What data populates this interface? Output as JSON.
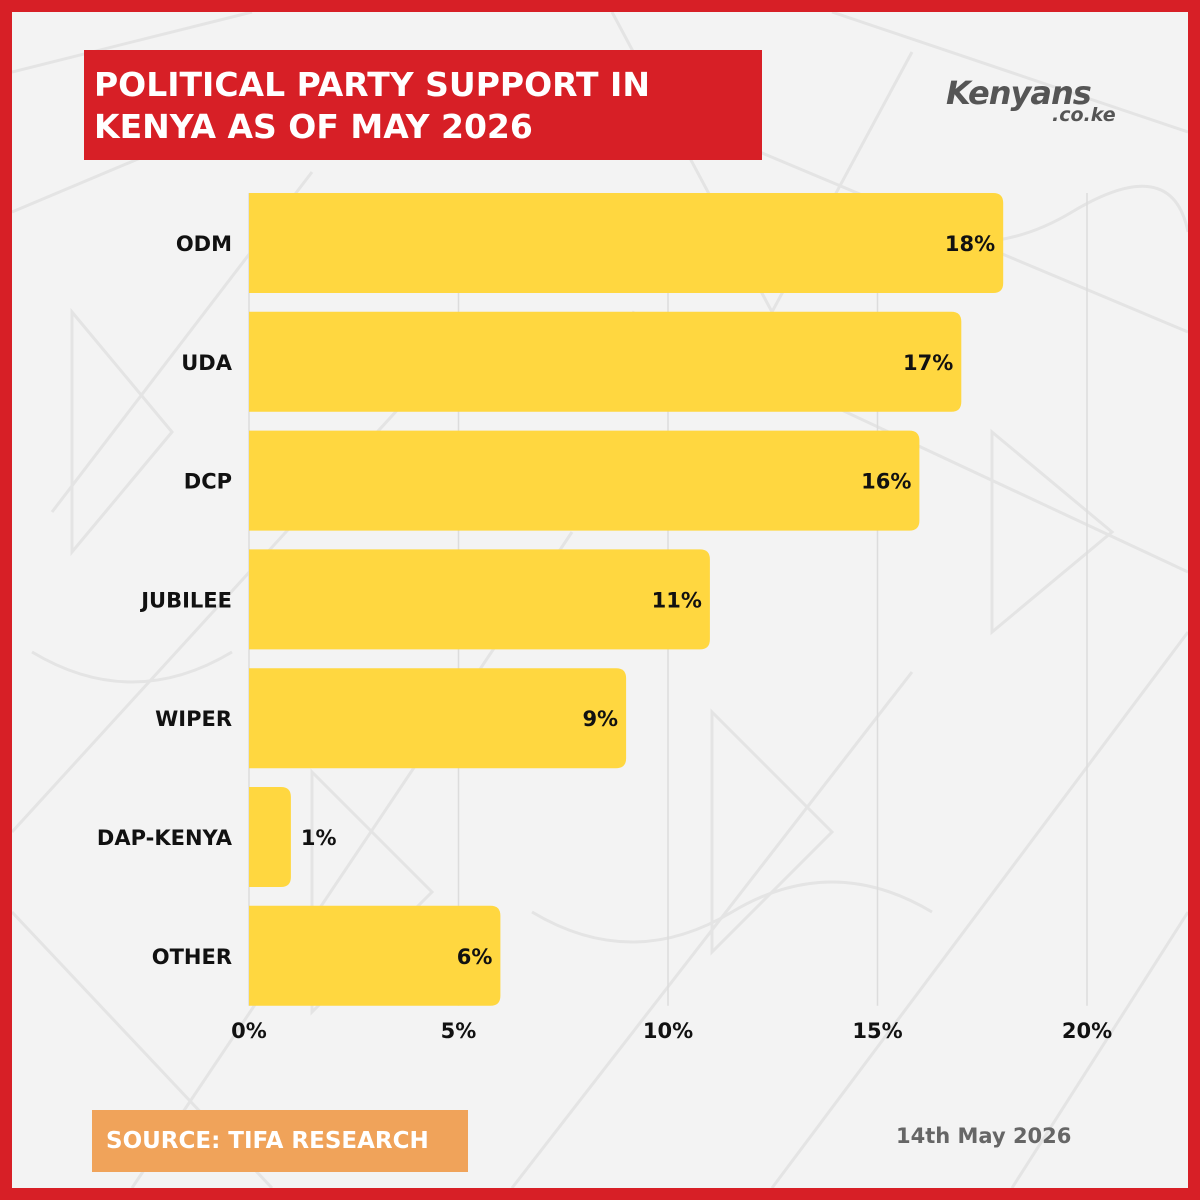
{
  "header": {
    "title_line1": "POLITICAL PARTY SUPPORT IN",
    "title_line2": "KENYA AS OF MAY 2026"
  },
  "logo": {
    "main": "Kenyans",
    "sub": ".co.ke"
  },
  "footer": {
    "source": "SOURCE: TIFA RESEARCH",
    "date": "14th May 2026"
  },
  "colors": {
    "border": "#d71f26",
    "background": "#f3f3f3",
    "bar": "#ffd740",
    "title_bg": "#d71f26",
    "source_bg": "#f0a35a"
  },
  "chart_data": {
    "type": "bar",
    "orientation": "horizontal",
    "categories": [
      "ODM",
      "UDA",
      "DCP",
      "JUBILEE",
      "WIPER",
      "DAP-KENYA",
      "OTHER"
    ],
    "values": [
      18,
      17,
      16,
      11,
      9,
      1,
      6
    ],
    "value_labels": [
      "18%",
      "17%",
      "16%",
      "11%",
      "9%",
      "1%",
      "6%"
    ],
    "xlim": [
      0,
      20
    ],
    "xticks": [
      0,
      5,
      10,
      15,
      20
    ],
    "xtick_labels": [
      "0%",
      "5%",
      "10%",
      "15%",
      "20%"
    ],
    "grid": true,
    "legend": "none",
    "title": "POLITICAL PARTY SUPPORT IN KENYA AS OF MAY 2026"
  }
}
